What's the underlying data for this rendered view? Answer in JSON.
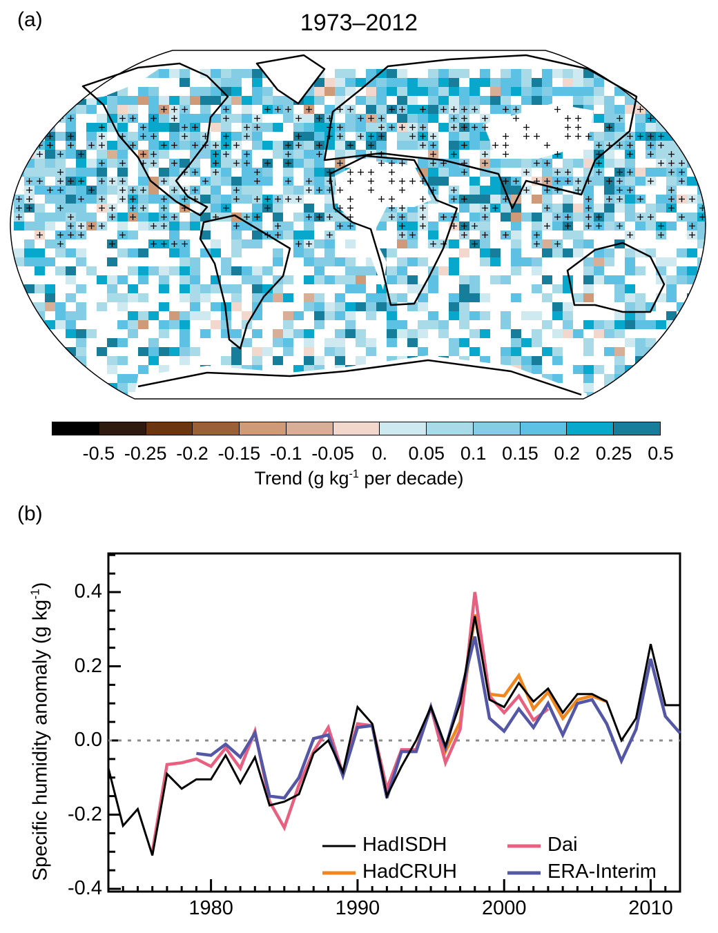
{
  "panel_a": {
    "label": "(a)",
    "title": "1973–2012",
    "colorbar": {
      "colors": [
        "#000000",
        "#2e1a0e",
        "#6a3510",
        "#9a6138",
        "#cf9a78",
        "#d9ae96",
        "#f2d8cc",
        "#cfe9f1",
        "#a9dae8",
        "#84cde4",
        "#5dc1e4",
        "#08a8cc",
        "#167d9b"
      ],
      "labels": [
        "-0.5",
        "-0.25",
        "-0.2",
        "-0.15",
        "-0.1",
        "-0.05",
        "0.",
        "0.05",
        "0.1",
        "0.15",
        "0.2",
        "0.25",
        "0.5"
      ],
      "title_main": "Trend (g kg",
      "title_sup": "-1",
      "title_end": " per decade)"
    }
  },
  "panel_b": {
    "label": "(b)"
  },
  "chart_data": {
    "type": "line",
    "title": "",
    "xlabel": "",
    "ylabel_main": "Specific humidity anomaly (g kg",
    "ylabel_sup": "-1",
    "ylabel_end": ")",
    "xlim": [
      1973,
      2012
    ],
    "ylim": [
      -0.41,
      0.5
    ],
    "xticks": [
      "1980",
      "1990",
      "2000",
      "2010"
    ],
    "xtick_values": [
      1980,
      1990,
      2000,
      2010
    ],
    "yticks": [
      "0.4",
      "0.2",
      "0.0",
      "-0.2",
      "-0.4"
    ],
    "ytick_values": [
      0.4,
      0.2,
      0.0,
      -0.2,
      -0.4
    ],
    "reference_line": 0.0,
    "legend_position": "bottom-right",
    "series": [
      {
        "name": "HadISDH",
        "color": "#000000",
        "x": [
          1973,
          1974,
          1975,
          1976,
          1977,
          1978,
          1979,
          1980,
          1981,
          1982,
          1983,
          1984,
          1985,
          1986,
          1987,
          1988,
          1989,
          1990,
          1991,
          1992,
          1993,
          1994,
          1995,
          1996,
          1997,
          1998,
          1999,
          2000,
          2001,
          2002,
          2003,
          2004,
          2005,
          2006,
          2007,
          2008,
          2009,
          2010,
          2011,
          2012
        ],
        "values": [
          -0.075,
          -0.23,
          -0.185,
          -0.31,
          -0.09,
          -0.13,
          -0.105,
          -0.105,
          -0.04,
          -0.115,
          -0.045,
          -0.175,
          -0.165,
          -0.145,
          -0.035,
          0.0,
          -0.085,
          0.09,
          0.045,
          -0.15,
          -0.07,
          0.0,
          0.09,
          -0.015,
          0.1,
          0.335,
          0.11,
          0.09,
          0.155,
          0.105,
          0.14,
          0.075,
          0.125,
          0.125,
          0.105,
          0.0,
          0.06,
          0.26,
          0.095,
          0.095
        ]
      },
      {
        "name": "HadCRUH",
        "color": "#f0861e",
        "x": [
          1994,
          1995,
          1996,
          1997,
          1998,
          1999,
          2000,
          2001,
          2002,
          2003,
          2004,
          2005,
          2006,
          2007
        ],
        "values": [
          -0.025,
          0.09,
          -0.03,
          0.05,
          0.34,
          0.125,
          0.12,
          0.175,
          0.085,
          0.13,
          0.06,
          0.11,
          0.12,
          0.105
        ]
      },
      {
        "name": "Dai",
        "color": "#e8607f",
        "x": [
          1976,
          1977,
          1978,
          1979,
          1980,
          1981,
          1982,
          1983,
          1984,
          1985,
          1986,
          1987,
          1988,
          1989,
          1990,
          1991,
          1992,
          1993,
          1994,
          1995,
          1996,
          1997,
          1998,
          1999,
          2000,
          2001,
          2002,
          2003
        ],
        "values": [
          -0.3,
          -0.065,
          -0.06,
          -0.05,
          -0.07,
          -0.02,
          -0.075,
          0.025,
          -0.165,
          -0.235,
          -0.12,
          -0.03,
          0.035,
          -0.09,
          0.045,
          0.04,
          -0.13,
          -0.025,
          -0.025,
          0.09,
          -0.06,
          0.03,
          0.4,
          0.12,
          0.075,
          0.12,
          0.055,
          0.085
        ]
      },
      {
        "name": "ERA-Interim",
        "color": "#5457a6",
        "x": [
          1979,
          1980,
          1981,
          1982,
          1983,
          1984,
          1985,
          1986,
          1987,
          1988,
          1989,
          1990,
          1991,
          1992,
          1993,
          1994,
          1995,
          1996,
          1997,
          1998,
          1999,
          2000,
          2001,
          2002,
          2003,
          2004,
          2005,
          2006,
          2007,
          2008,
          2009,
          2010,
          2011,
          2012
        ],
        "values": [
          -0.035,
          -0.04,
          -0.01,
          -0.045,
          0.02,
          -0.15,
          -0.155,
          -0.1,
          0.005,
          0.015,
          -0.095,
          0.035,
          0.04,
          -0.155,
          -0.03,
          -0.03,
          0.09,
          -0.02,
          0.12,
          0.28,
          0.06,
          0.025,
          0.085,
          0.035,
          0.1,
          0.015,
          0.1,
          0.11,
          0.045,
          -0.055,
          0.03,
          0.22,
          0.065,
          0.02
        ]
      }
    ]
  }
}
